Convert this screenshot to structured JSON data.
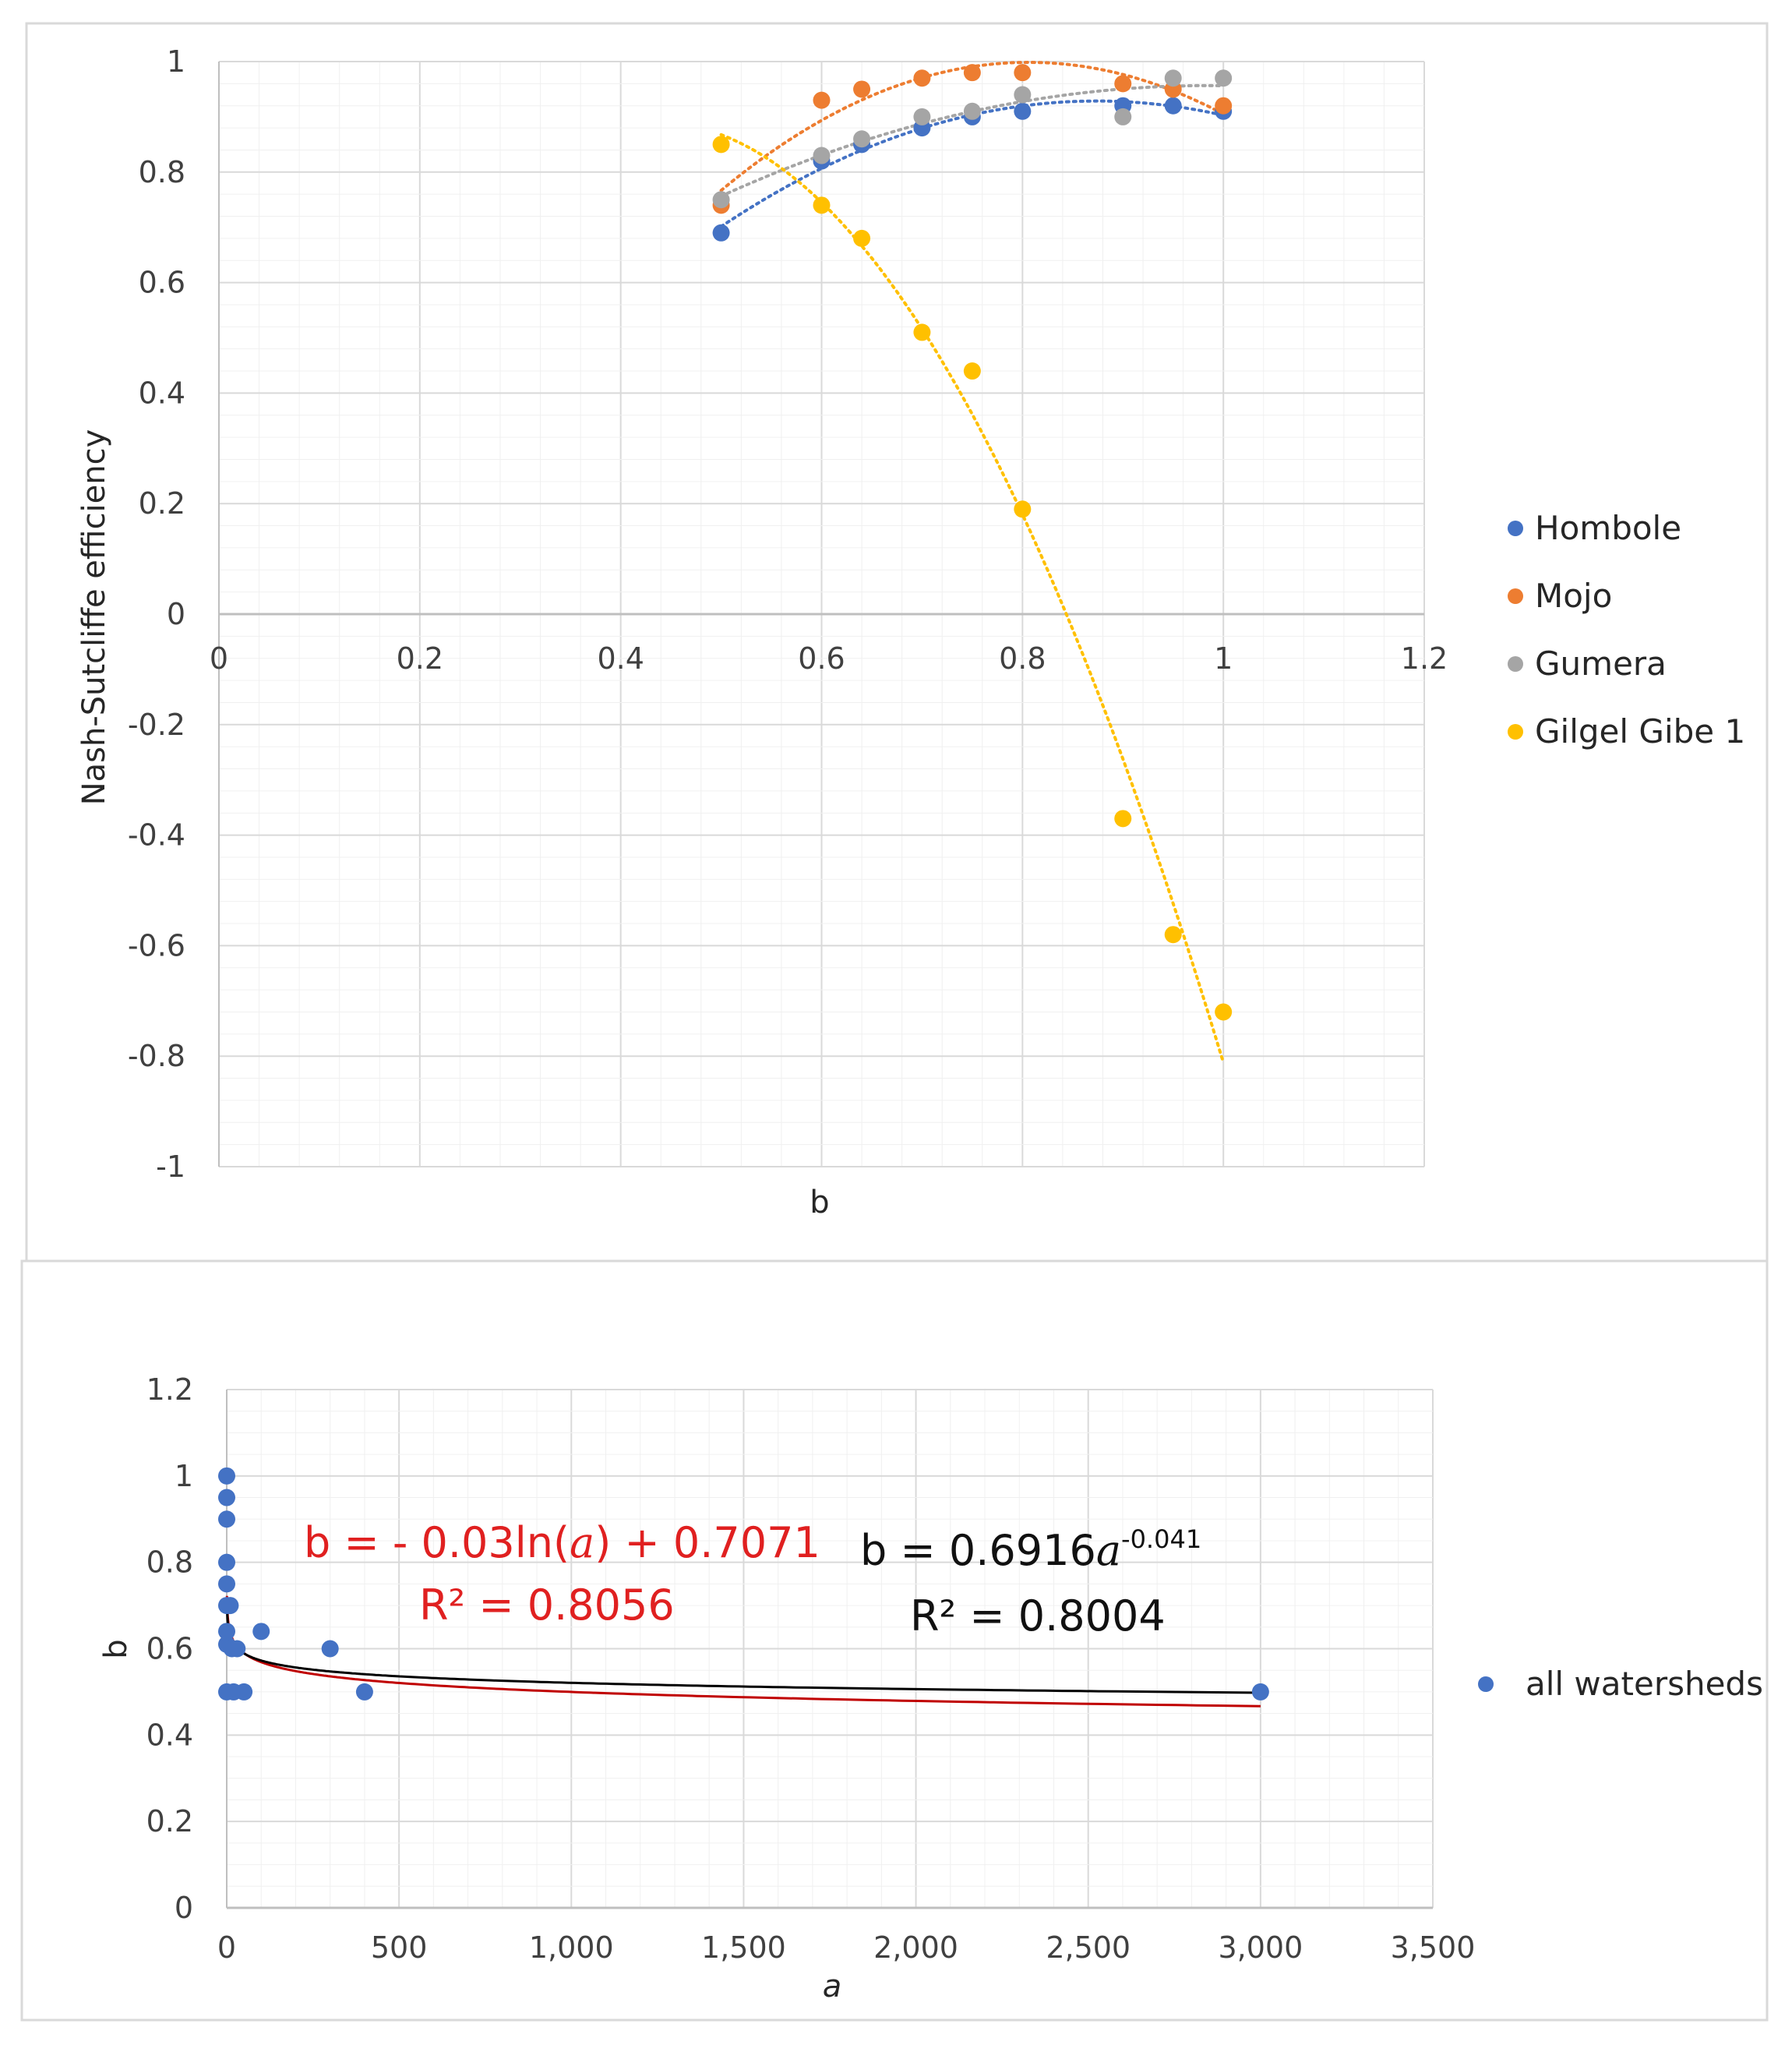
{
  "chart_data": [
    {
      "type": "scatter",
      "title": "",
      "xlabel": "b",
      "ylabel": "Nash-Sutcliffe efficiency",
      "xlim": [
        0,
        1.2
      ],
      "ylim": [
        -1,
        1
      ],
      "x_ticks": [
        "0",
        "0.2",
        "0.4",
        "0.6",
        "0.8",
        "1",
        "1.2"
      ],
      "y_ticks": [
        "1",
        "0.8",
        "0.6",
        "0.4",
        "0.2",
        "0",
        "-0.2",
        "-0.4",
        "-0.6",
        "-0.8",
        "-1"
      ],
      "legend_position": "right",
      "grid": true,
      "trendline": "polynomial (dotted)",
      "series": [
        {
          "name": "Hombole",
          "color": "#4472c4",
          "x": [
            0.5,
            0.6,
            0.64,
            0.7,
            0.75,
            0.8,
            0.9,
            0.95,
            1.0
          ],
          "y": [
            0.69,
            0.82,
            0.85,
            0.88,
            0.9,
            0.91,
            0.92,
            0.92,
            0.91
          ]
        },
        {
          "name": "Mojo",
          "color": "#ed7d31",
          "x": [
            0.5,
            0.6,
            0.64,
            0.7,
            0.75,
            0.8,
            0.9,
            0.95,
            1.0
          ],
          "y": [
            0.74,
            0.93,
            0.95,
            0.97,
            0.98,
            0.98,
            0.96,
            0.95,
            0.92
          ]
        },
        {
          "name": "Gumera",
          "color": "#a5a5a5",
          "x": [
            0.5,
            0.6,
            0.64,
            0.7,
            0.75,
            0.8,
            0.9,
            0.95,
            1.0
          ],
          "y": [
            0.75,
            0.83,
            0.86,
            0.9,
            0.91,
            0.94,
            0.9,
            0.97,
            0.97
          ]
        },
        {
          "name": "Gilgel Gibe 1",
          "color": "#ffc000",
          "x": [
            0.5,
            0.6,
            0.64,
            0.7,
            0.75,
            0.8,
            0.9,
            0.95,
            1.0
          ],
          "y": [
            0.85,
            0.74,
            0.68,
            0.51,
            0.44,
            0.19,
            -0.37,
            -0.58,
            -0.72
          ]
        }
      ]
    },
    {
      "type": "scatter",
      "title": "",
      "xlabel": "a",
      "ylabel": "b",
      "xlim": [
        0,
        3500
      ],
      "ylim": [
        0,
        1.2
      ],
      "x_ticks": [
        "0",
        "500",
        "1,000",
        "1,500",
        "2,000",
        "2,500",
        "3,000",
        "3,500"
      ],
      "y_ticks": [
        "1.2",
        "1",
        "0.8",
        "0.6",
        "0.4",
        "0.2",
        "0"
      ],
      "legend_position": "right",
      "grid": true,
      "series": [
        {
          "name": "all watersheds",
          "color": "#4472c4",
          "x": [
            0,
            0,
            0,
            0,
            0,
            0,
            0,
            0,
            0,
            10,
            15,
            20,
            30,
            50,
            100,
            300,
            400,
            3000
          ],
          "y": [
            1.0,
            0.95,
            0.9,
            0.8,
            0.75,
            0.7,
            0.64,
            0.61,
            0.5,
            0.7,
            0.6,
            0.5,
            0.6,
            0.5,
            0.64,
            0.6,
            0.5,
            0.5
          ]
        }
      ],
      "trendlines": [
        {
          "label": "b = - 0.03ln(a) + 0.7071",
          "r2": "R² = 0.8056",
          "color": "#c00000",
          "kind": "log",
          "coef": -0.03,
          "intercept": 0.7071
        },
        {
          "label": "b = 0.6916a-0.041",
          "r2": "R² = 0.8004",
          "color": "#000000",
          "kind": "power",
          "coef": 0.6916,
          "exponent": -0.041
        }
      ]
    }
  ],
  "annotations": {
    "red_eq_pre": "b = - 0.03ln(",
    "red_eq_var": "a",
    "red_eq_post": ") + 0.7071",
    "red_r2": "R² = 0.8056",
    "black_eq_pre": "b = 0.6916",
    "black_eq_var": "a",
    "black_eq_exp": "-0.041",
    "black_r2": "R² = 0.8004"
  }
}
